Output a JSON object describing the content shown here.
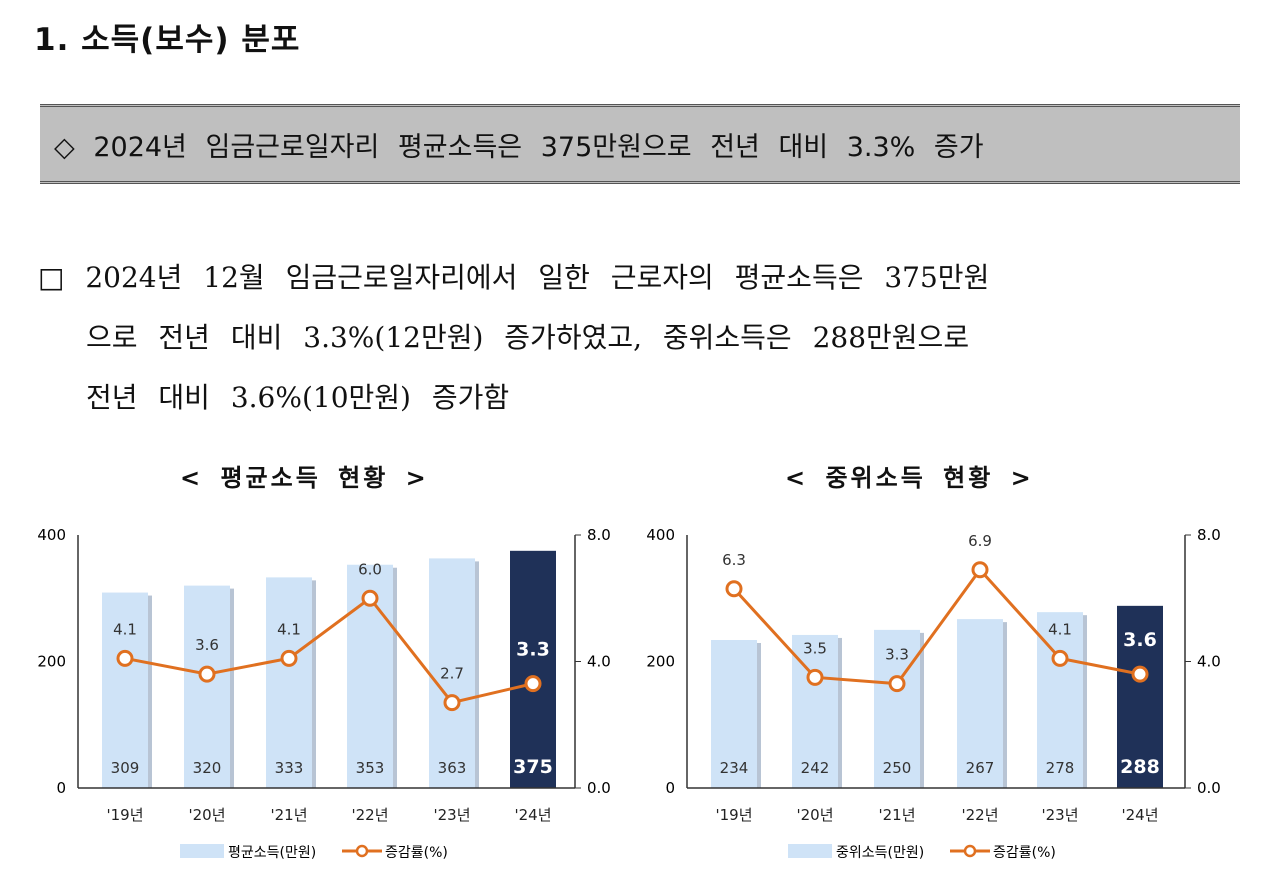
{
  "section_title": "1. 소득(보수) 분포",
  "summary": "◇ 2024년 임금근로일자리 평균소득은 375만원으로 전년 대비 3.3% 증가",
  "paragraph": {
    "lines": [
      "□ 2024년 12월 임금근로일자리에서 일한 근로자의 평균소득은 375만원",
      "으로 전년 대비 3.3%(12만원) 증가하였고, 중위소득은 288만원으로",
      "전년 대비 3.6%(10만원) 증가함"
    ]
  },
  "colors": {
    "bar": "#cfe3f7",
    "bar_highlight": "#1f3158",
    "line": "#e07020"
  },
  "chart_data": [
    {
      "type": "bar+line",
      "title": "< 평균소득 현황 >",
      "categories": [
        "'19년",
        "'20년",
        "'21년",
        "'22년",
        "'23년",
        "'24년"
      ],
      "series": [
        {
          "name": "평균소득(만원)",
          "type": "bar",
          "axis": "left",
          "values": [
            309,
            320,
            333,
            353,
            363,
            375
          ]
        },
        {
          "name": "증감률(%)",
          "type": "line",
          "axis": "right",
          "values": [
            4.1,
            3.6,
            4.1,
            6.0,
            2.7,
            3.3
          ]
        }
      ],
      "left_axis": {
        "range": [
          0,
          400
        ],
        "ticks": [
          "0",
          "200",
          "400"
        ]
      },
      "right_axis": {
        "range": [
          0,
          8
        ],
        "ticks": [
          "0.0",
          "4.0",
          "8.0"
        ]
      },
      "legend": "bottom"
    },
    {
      "type": "bar+line",
      "title": "< 중위소득 현황 >",
      "categories": [
        "'19년",
        "'20년",
        "'21년",
        "'22년",
        "'23년",
        "'24년"
      ],
      "series": [
        {
          "name": "중위소득(만원)",
          "type": "bar",
          "axis": "left",
          "values": [
            234,
            242,
            250,
            267,
            278,
            288
          ]
        },
        {
          "name": "증감률(%)",
          "type": "line",
          "axis": "right",
          "values": [
            6.3,
            3.5,
            3.3,
            6.9,
            4.1,
            3.6
          ]
        }
      ],
      "left_axis": {
        "range": [
          0,
          400
        ],
        "ticks": [
          "0",
          "200",
          "400"
        ]
      },
      "right_axis": {
        "range": [
          0,
          8
        ],
        "ticks": [
          "0.0",
          "4.0",
          "8.0"
        ]
      },
      "legend": "bottom"
    }
  ]
}
